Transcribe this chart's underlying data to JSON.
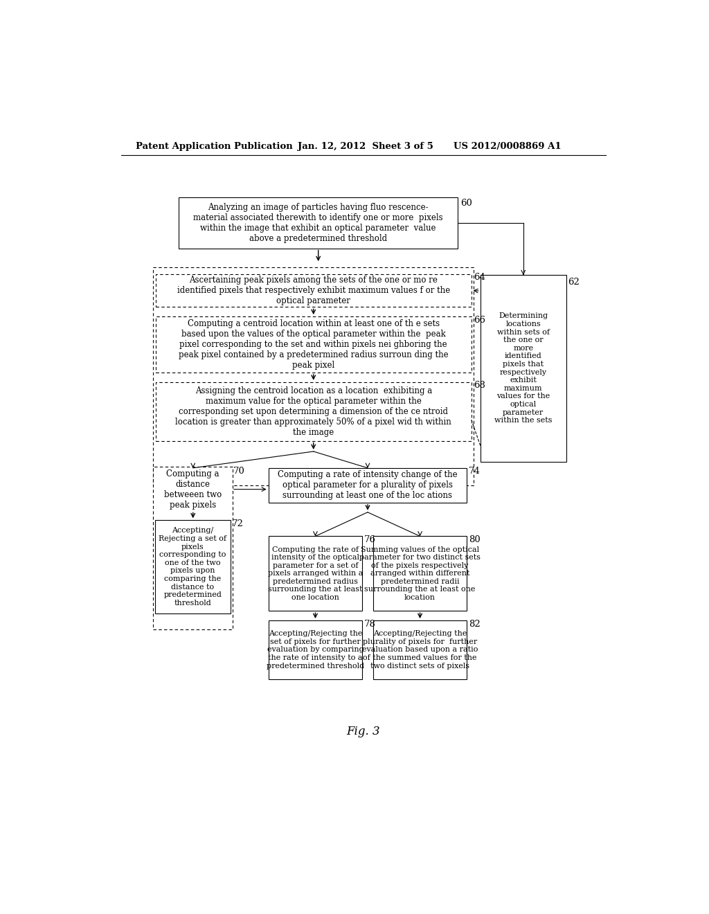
{
  "bg_color": "#ffffff",
  "header_left": "Patent Application Publication",
  "header_center": "Jan. 12, 2012  Sheet 3 of 5",
  "header_right": "US 2012/0008869 A1",
  "footer": "Fig. 3",
  "box60_text": "Analyzing an image of particles having fluo rescence-\nmaterial associated therewith to identify one or more  pixels\nwithin the image that exhibit an optical parameter  value\nabove a predetermined threshold",
  "box60_label": "60",
  "box64_text": "Ascertaining peak pixels among the sets of the one or mo re\nidentified pixels that respectively exhibit maximum values f or the\noptical parameter",
  "box64_label": "64",
  "box66_text": "Computing a centroid location within at least one of th e sets\nbased upon the values of the optical parameter within the  peak\npixel corresponding to the set and within pixels nei ghboring the\npeak pixel contained by a predetermined radius surroun ding the\npeak pixel",
  "box66_label": "66",
  "box68_text": "Assigning the centroid location as a location  exhibiting a\nmaximum value for the optical parameter within the\ncorresponding set upon determining a dimension of the ce ntroid\nlocation is greater than approximately 50% of a pixel wid th within\nthe image",
  "box68_label": "68",
  "box62_text": "Determining\nlocations\nwithin sets of\nthe one or\nmore\nidentified\npixels that\nrespectively\nexhibit\nmaximum\nvalues for the\noptical\nparameter\nwithin the sets",
  "box62_label": "62",
  "box70_text": "Computing a\ndistance\nbetweeen two\npeak pixels",
  "box70_label": "70",
  "box72_text": "Accepting/\nRejecting a set of\npixels\ncorresponding to\none of the two\npixels upon\ncomparing the\ndistance to\npredetermined\nthreshold",
  "box72_label": "72",
  "box74_text": "Computing a rate of intensity change of the\noptical parameter for a plurality of pixels\nsurrounding at least one of the loc ations",
  "box74_label": "74",
  "box76_text": "Computing the rate of\nintensity of the optical\nparameter for a set of\npixels arranged within a\npredetermined radius\nsurrounding the at least\none location",
  "box76_label": "76",
  "box78_text": "Accepting/Rejecting the\nset of pixels for further\nevaluation by comparing\nthe rate of intensity to a\npredetermined threshold",
  "box78_label": "78",
  "box80_text": "Summing values of the optical\nparameter for two distinct sets\nof the pixels respectively\narranged within different\npredetermined radii\nsurrounding the at least one\nlocation",
  "box80_label": "80",
  "box82_text": "Accepting/Rejecting the\nplurality of pixels for  further\nevaluation based upon a ratio\nof the summed values for the\ntwo distinct sets of pixels",
  "box82_label": "82"
}
